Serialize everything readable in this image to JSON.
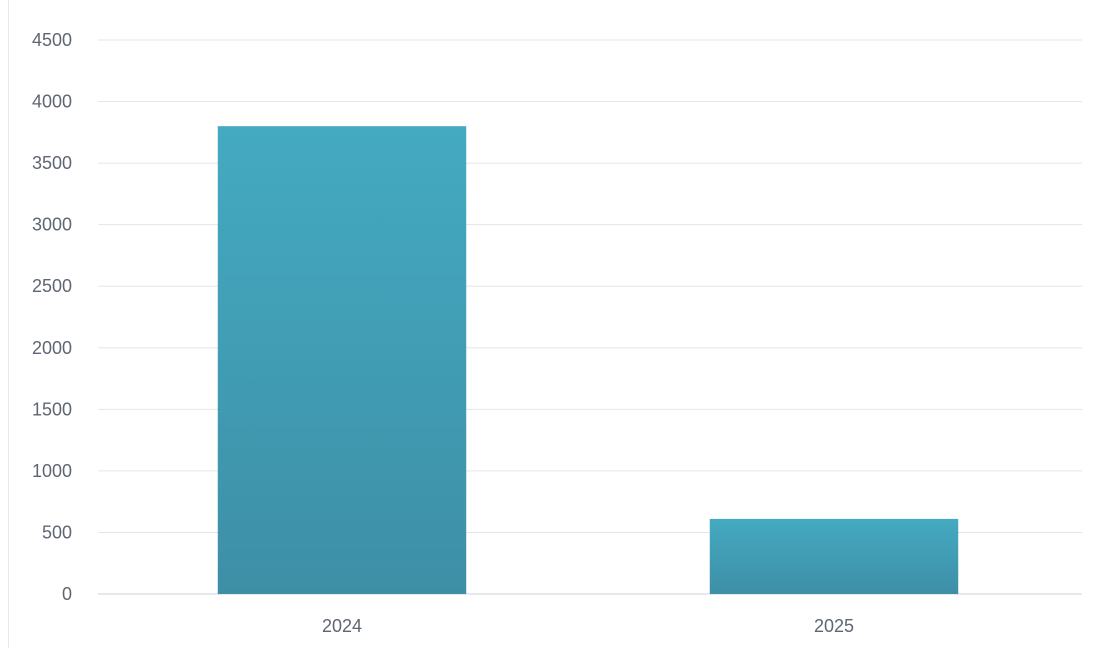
{
  "chart_data": {
    "type": "bar",
    "categories": [
      "2024",
      "2025"
    ],
    "series": [
      {
        "values": [
          3800,
          610
        ]
      }
    ],
    "ylim": [
      0,
      4500
    ],
    "yticks": [
      "0",
      "500",
      "1000",
      "1500",
      "2000",
      "2500",
      "3000",
      "3500",
      "4000",
      "4500"
    ],
    "grid": true,
    "legend": "none",
    "title": "",
    "xlabel": "",
    "ylabel": ""
  },
  "colors": {
    "bar_top": "#44aac1",
    "bar_bottom": "#3d8fa6",
    "grid": "#e3e6ea",
    "tick_text": "#5f6673"
  }
}
